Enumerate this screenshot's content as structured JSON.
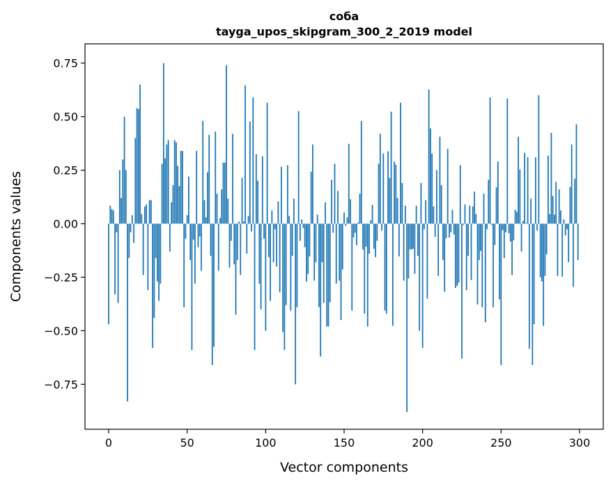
{
  "chart_data": {
    "type": "bar",
    "title": "соба",
    "subtitle": "tayga_upos_skipgram_300_2_2019 model",
    "xlabel": "Vector components",
    "ylabel": "Components values",
    "xlim": [
      -15.1,
      315.1
    ],
    "ylim": [
      -0.96,
      0.84
    ],
    "xticks": [
      0,
      50,
      100,
      150,
      200,
      250,
      300
    ],
    "xtick_labels": [
      "0",
      "50",
      "100",
      "150",
      "200",
      "250",
      "300"
    ],
    "yticks": [
      -0.75,
      -0.5,
      -0.25,
      0,
      0.25,
      0.5,
      0.75
    ],
    "ytick_labels": [
      "−0.75",
      "−0.50",
      "−0.25",
      "0.00",
      "0.25",
      "0.50",
      "0.75"
    ],
    "grid": false,
    "color": "#1f77b4",
    "values": [
      -0.47,
      0.084,
      0.068,
      0.062,
      -0.33,
      -0.04,
      -0.37,
      0.25,
      0.12,
      0.3,
      0.5,
      0.25,
      -0.83,
      -0.16,
      -0.04,
      0.04,
      -0.09,
      0.4,
      0.54,
      0.535,
      0.65,
      0.045,
      -0.24,
      0.08,
      0.09,
      -0.31,
      0.11,
      0.11,
      -0.58,
      -0.44,
      -0.16,
      -0.27,
      -0.36,
      -0.28,
      0.28,
      0.75,
      0.305,
      0.37,
      0.39,
      -0.13,
      0.1,
      0.18,
      0.39,
      0.38,
      0.27,
      0.175,
      0.34,
      0.34,
      -0.39,
      -0.07,
      0.04,
      0.22,
      -0.17,
      -0.59,
      -0.075,
      -0.28,
      0.34,
      -0.11,
      -0.06,
      -0.22,
      0.48,
      0.11,
      0.03,
      0.24,
      0.415,
      -0.15,
      -0.66,
      -0.575,
      0.43,
      0.14,
      -0.22,
      0.026,
      0.16,
      0.285,
      0.285,
      0.74,
      0.117,
      -0.205,
      -0.08,
      0.42,
      -0.19,
      -0.425,
      -0.17,
      0.01,
      -0.24,
      0.214,
      0.01,
      0.646,
      -0.14,
      0.036,
      0.477,
      -0.036,
      0.59,
      -0.59,
      0.325,
      0.2,
      -0.28,
      -0.4,
      0.315,
      -0.07,
      -0.5,
      0.565,
      -0.156,
      -0.36,
      0.062,
      -0.18,
      -0.026,
      -0.2,
      0.104,
      -0.32,
      0.266,
      -0.506,
      -0.59,
      -0.38,
      0.273,
      0.036,
      -0.406,
      -0.15,
      0.117,
      -0.75,
      -0.39,
      0.526,
      -0.08,
      0.02,
      -0.02,
      -0.11,
      -0.27,
      -0.234,
      -0.153,
      0.243,
      0.37,
      -0.266,
      -0.18,
      0.042,
      -0.39,
      -0.62,
      -0.18,
      -0.37,
      0.1,
      -0.48,
      -0.48,
      -0.367,
      0.205,
      -0.042,
      0.28,
      -0.28,
      0.153,
      -0.266,
      -0.45,
      -0.214,
      0.052,
      -0.01,
      0.03,
      0.373,
      0.114,
      -0.406,
      -0.065,
      -0.042,
      -0.1,
      0.006,
      0.14,
      0.48,
      -0.12,
      -0.42,
      -0.107,
      -0.48,
      -0.14,
      0.016,
      0.088,
      -0.117,
      -0.156,
      -0.08,
      0.28,
      0.42,
      -0.032,
      0.328,
      -0.406,
      -0.42,
      0.338,
      0.214,
      0.523,
      -0.477,
      0.29,
      0.276,
      0.12,
      -0.153,
      0.565,
      0.19,
      -0.266,
      0.084,
      -0.88,
      -0.256,
      -0.12,
      -0.12,
      -0.117,
      -0.234,
      0.084,
      -0.15,
      -0.5,
      0.19,
      -0.58,
      -0.026,
      0.11,
      -0.35,
      0.627,
      0.445,
      0.328,
      0.081,
      -0.062,
      0.25,
      -0.244,
      0.406,
      0.18,
      -0.17,
      -0.318,
      -0.068,
      0.35,
      -0.065,
      -0.04,
      0.065,
      -0.05,
      -0.3,
      -0.29,
      -0.276,
      0.273,
      -0.63,
      -0.006,
      0.09,
      -0.31,
      -0.15,
      0.084,
      -0.263,
      0.081,
      0.15,
      0.045,
      -0.377,
      -0.17,
      -0.127,
      -0.39,
      0.14,
      -0.46,
      -0.026,
      0.205,
      0.59,
      -0.006,
      -0.39,
      -0.1,
      0.17,
      0.29,
      -0.354,
      -0.66,
      -0.03,
      -0.16,
      -0.04,
      0.585,
      -0.045,
      -0.084,
      -0.24,
      -0.078,
      0.065,
      0.055,
      0.406,
      0.253,
      -0.13,
      0.013,
      0.33,
      0.003,
      0.31,
      -0.584,
      0.117,
      -0.66,
      -0.47,
      0.31,
      -0.032,
      0.6,
      -0.25,
      -0.27,
      -0.477,
      -0.244,
      -0.143,
      0.318,
      0.045,
      0.425,
      0.13,
      0.042,
      0.195,
      -0.244,
      0.16,
      0.062,
      -0.247,
      0.02,
      -0.055,
      -0.026,
      -0.18,
      0.172,
      0.37,
      -0.295,
      0.21,
      0.464,
      -0.17
    ]
  }
}
